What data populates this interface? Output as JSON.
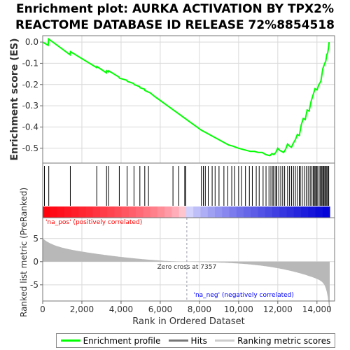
{
  "chart_data": {
    "type": "line",
    "title_lines": [
      "Enrichment plot: AURKA ACTIVATION BY TPX2%",
      "REACTOME DATABASE ID RELEASE 72%8854518"
    ],
    "top_panel": {
      "ylabel": "Enrichment score (ES)",
      "ylim": [
        -0.57,
        0.03
      ],
      "yticks": [
        0.0,
        -0.1,
        -0.2,
        -0.3,
        -0.4,
        -0.5
      ],
      "ytick_labels": [
        "0.0",
        "-0.1",
        "-0.2",
        "-0.3",
        "-0.4",
        "-0.5"
      ],
      "grid": true,
      "series": [
        {
          "name": "Enrichment profile",
          "color": "#00ff00",
          "x": [
            0,
            280,
            300,
            1400,
            1420,
            2750,
            2770,
            3250,
            3270,
            3350,
            3370,
            3900,
            3920,
            4300,
            4320,
            4650,
            4670,
            4950,
            4970,
            5200,
            5220,
            5500,
            5700,
            6000,
            6300,
            6600,
            6900,
            7200,
            7500,
            7800,
            8100,
            8400,
            8700,
            9000,
            9300,
            9500,
            9700,
            10000,
            10200,
            10400,
            10600,
            10800,
            11000,
            11200,
            11400,
            11600,
            11700,
            11800,
            11900,
            12000,
            12100,
            12200,
            12300,
            12400,
            12500,
            12600,
            12700,
            12800,
            12900,
            13000,
            13100,
            13200,
            13300,
            13400,
            13500,
            13600,
            13700,
            13800,
            13900,
            14000,
            14100,
            14200,
            14300,
            14400,
            14450,
            14500,
            14550,
            14600,
            14620
          ],
          "y": [
            0.0,
            -0.015,
            0.015,
            -0.06,
            -0.045,
            -0.12,
            -0.115,
            -0.145,
            -0.135,
            -0.14,
            -0.135,
            -0.165,
            -0.17,
            -0.18,
            -0.185,
            -0.195,
            -0.2,
            -0.21,
            -0.215,
            -0.222,
            -0.228,
            -0.24,
            -0.255,
            -0.275,
            -0.295,
            -0.315,
            -0.335,
            -0.355,
            -0.375,
            -0.395,
            -0.415,
            -0.43,
            -0.445,
            -0.46,
            -0.475,
            -0.485,
            -0.49,
            -0.5,
            -0.505,
            -0.51,
            -0.515,
            -0.515,
            -0.52,
            -0.52,
            -0.53,
            -0.535,
            -0.525,
            -0.53,
            -0.52,
            -0.5,
            -0.51,
            -0.515,
            -0.52,
            -0.505,
            -0.48,
            -0.49,
            -0.495,
            -0.475,
            -0.46,
            -0.435,
            -0.44,
            -0.39,
            -0.36,
            -0.365,
            -0.32,
            -0.325,
            -0.28,
            -0.25,
            -0.22,
            -0.225,
            -0.2,
            -0.185,
            -0.125,
            -0.1,
            -0.09,
            -0.06,
            -0.05,
            -0.02,
            0.0
          ]
        }
      ]
    },
    "hits_panel": {
      "name": "Hits",
      "positions": [
        90,
        310,
        1410,
        2760,
        3260,
        3360,
        3910,
        4310,
        4660,
        4960,
        5210,
        5400,
        6650,
        6950,
        7250,
        7300,
        8100,
        8200,
        8300,
        8450,
        8650,
        8800,
        9000,
        9250,
        9450,
        9650,
        9800,
        10000,
        10150,
        10350,
        10550,
        10700,
        10900,
        11050,
        11250,
        11400,
        11550,
        11650,
        11750,
        11800,
        11900,
        11950,
        12050,
        12150,
        12250,
        12350,
        12500,
        12600,
        12700,
        12800,
        12900,
        13000,
        13100,
        13150,
        13250,
        13350,
        13450,
        13550,
        13650,
        13700,
        13800,
        13850,
        13900,
        13950,
        14000,
        14050,
        14150,
        14200,
        14250,
        14300,
        14350,
        14400,
        14450,
        14500,
        14550,
        14600
      ]
    },
    "ranking_panel": {
      "name": "Ranking metric scores",
      "ylabel": "Ranked list metric (PreRanked)",
      "ylim": [
        -8.5,
        9.5
      ],
      "yticks": [
        5,
        0,
        -5
      ],
      "ytick_labels": [
        "5",
        "0",
        "-5"
      ],
      "max_value": 5.0,
      "min_value": -8.3,
      "zero_cross_label": "Zero cross at 7357",
      "zero_cross": 7357,
      "pos_label": "'na_pos' (positively correlated)",
      "neg_label": "'na_neg' (negatively correlated)",
      "pos_color": "#ff0000",
      "neg_color": "#0000ff"
    },
    "xlabel": "Rank in Ordered Dataset",
    "xlim": [
      0,
      14900
    ],
    "xticks": [
      0,
      2000,
      4000,
      6000,
      8000,
      10000,
      12000,
      14000
    ],
    "xtick_labels": [
      "0",
      "2,000",
      "4,000",
      "6,000",
      "8,000",
      "10,000",
      "12,000",
      "14,000"
    ],
    "n_genes": 14650,
    "legend": [
      {
        "label": "Enrichment profile",
        "color": "#00ff00"
      },
      {
        "label": "Hits",
        "color": "#777777"
      },
      {
        "label": "Ranking metric scores",
        "color": "#cccccc"
      }
    ]
  }
}
